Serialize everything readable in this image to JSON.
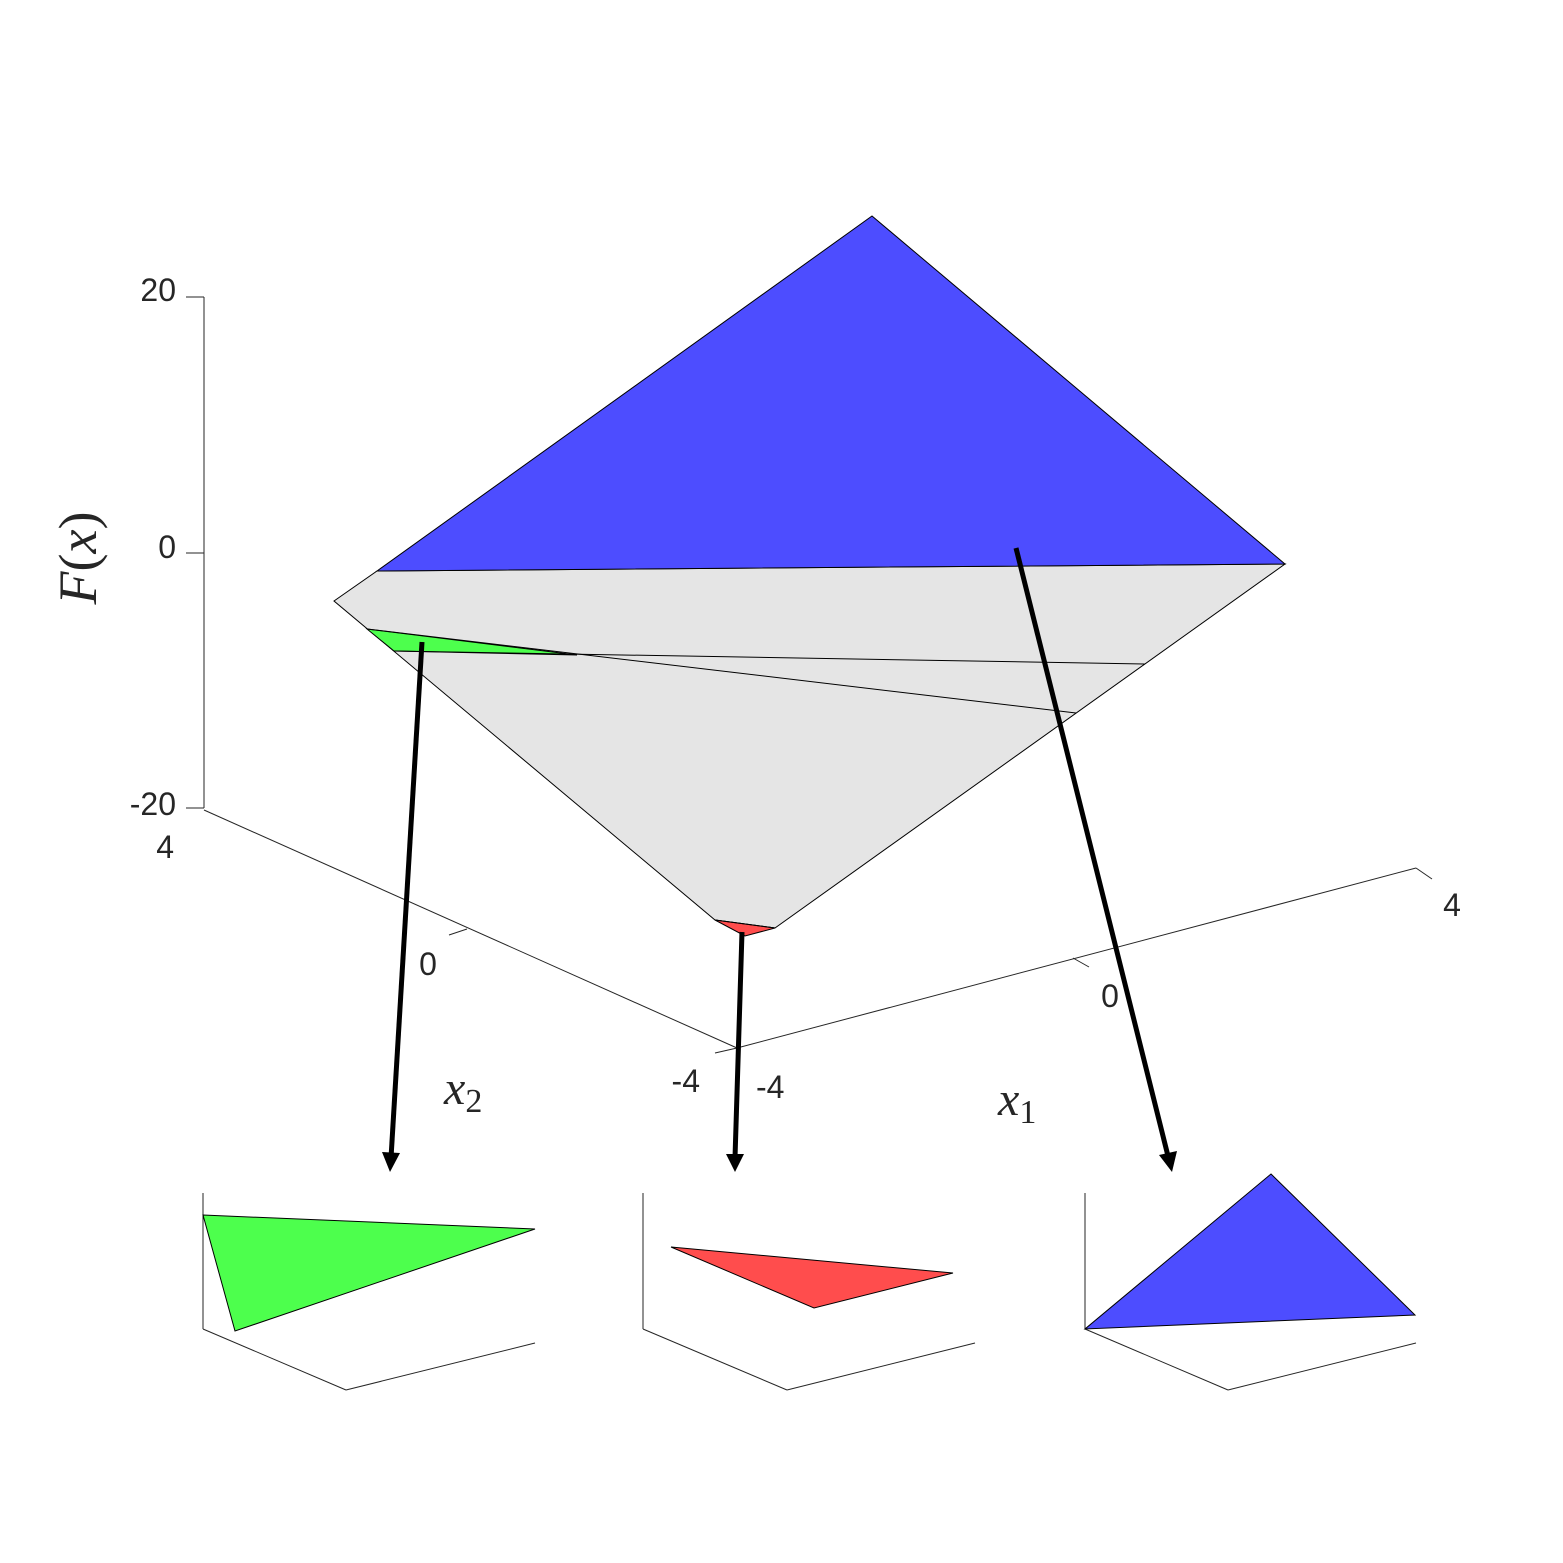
{
  "axis_labels": {
    "z": {
      "base": "F",
      "open": "(",
      "var": "x",
      "close": ")"
    },
    "x2": {
      "base": "x",
      "sub": "2"
    },
    "x1": {
      "base": "x",
      "sub": "1"
    }
  },
  "ticks": {
    "z": [
      "20",
      "0",
      "-20"
    ],
    "x2": [
      "4",
      "0",
      "-4"
    ],
    "x1": [
      "-4",
      "0",
      "4"
    ]
  },
  "colors": {
    "green_region": "#4dff4d",
    "red_region": "#ff4d4d",
    "blue_region": "#4d4dff",
    "gray_region": "#e5e5e5",
    "axis": "#262626",
    "arrow": "#000000"
  },
  "regions": [
    {
      "name": "green-region",
      "color_key": "green_region"
    },
    {
      "name": "red-region",
      "color_key": "red_region"
    },
    {
      "name": "blue-region",
      "color_key": "blue_region"
    }
  ]
}
